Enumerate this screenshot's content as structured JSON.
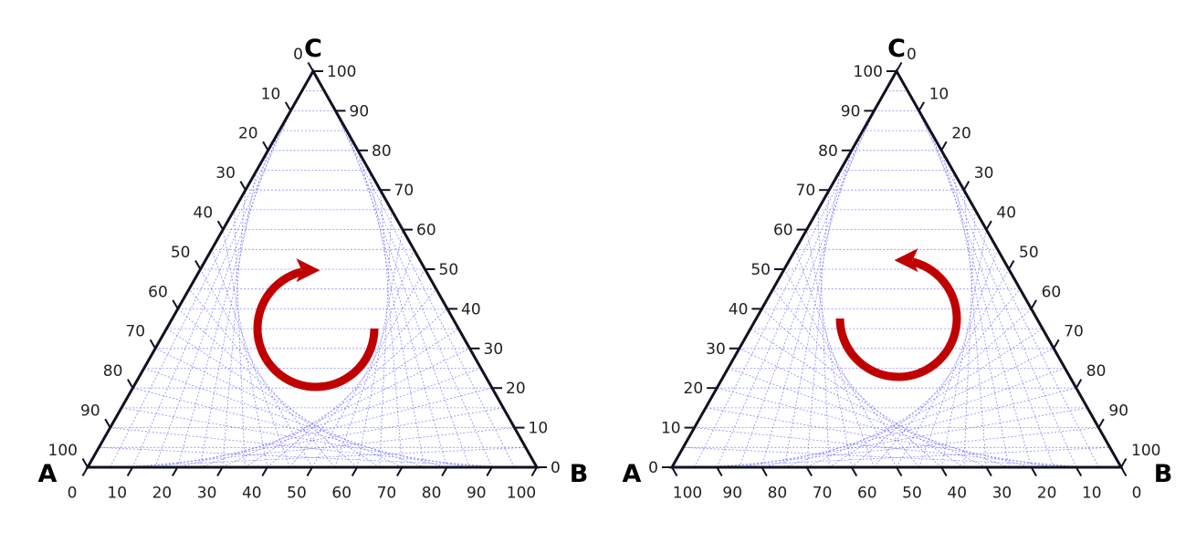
{
  "diagrams": [
    {
      "id": "left",
      "vertices": {
        "bottom_left": "A",
        "bottom_right": "B",
        "top": "C"
      },
      "bottom_axis_ticks": [
        "0",
        "10",
        "20",
        "30",
        "40",
        "50",
        "60",
        "70",
        "80",
        "90",
        "100"
      ],
      "left_axis_ticks": [
        "0",
        "10",
        "20",
        "30",
        "40",
        "50",
        "60",
        "70",
        "80",
        "90",
        "100"
      ],
      "right_axis_ticks": [
        "0",
        "10",
        "20",
        "30",
        "40",
        "50",
        "60",
        "70",
        "80",
        "90",
        "100"
      ],
      "rotation": "clockwise",
      "colors": {
        "edge": "#111122",
        "grid": "#6666ff",
        "arrow": "#c00000"
      }
    },
    {
      "id": "right",
      "vertices": {
        "bottom_left": "A",
        "bottom_right": "B",
        "top": "C"
      },
      "bottom_axis_ticks": [
        "100",
        "90",
        "80",
        "70",
        "60",
        "50",
        "40",
        "30",
        "20",
        "10",
        "0"
      ],
      "left_axis_ticks": [
        "0",
        "10",
        "20",
        "30",
        "40",
        "50",
        "60",
        "70",
        "80",
        "90",
        "100"
      ],
      "right_axis_ticks": [
        "0",
        "10",
        "20",
        "30",
        "40",
        "50",
        "60",
        "70",
        "80",
        "90",
        "100"
      ],
      "rotation": "counterclockwise",
      "colors": {
        "edge": "#111122",
        "grid": "#6666ff",
        "arrow": "#c00000"
      }
    }
  ]
}
